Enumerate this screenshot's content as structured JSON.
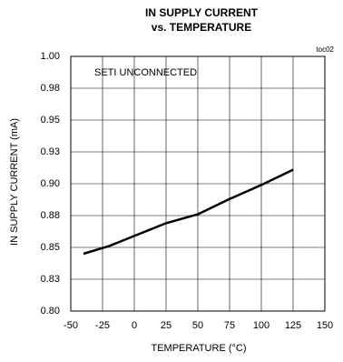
{
  "chart_data": {
    "type": "line",
    "title": "IN SUPPLY CURRENT",
    "subtitle": "vs. TEMPERATURE",
    "corner_label": "toc02",
    "annotation": "SETI UNCONNECTED",
    "x_label": "TEMPERATURE (°C)",
    "y_label": "IN SUPPLY CURRENT (mA)",
    "x": [
      -40,
      -20,
      0,
      25,
      50,
      75,
      100,
      125
    ],
    "values": [
      0.845,
      0.851,
      0.859,
      0.869,
      0.876,
      0.888,
      0.899,
      0.911
    ],
    "color": "#000000",
    "xlim": [
      -50,
      150
    ],
    "xticks": [
      -50,
      -25,
      0,
      25,
      50,
      75,
      100,
      125,
      150
    ],
    "ylim": [
      0.8,
      1.0
    ],
    "yticks": [
      {
        "value": 0.8,
        "label": "0.80"
      },
      {
        "value": 0.825,
        "label": "0.83"
      },
      {
        "value": 0.85,
        "label": "0.85"
      },
      {
        "value": 0.875,
        "label": "0.88"
      },
      {
        "value": 0.9,
        "label": "0.90"
      },
      {
        "value": 0.925,
        "label": "0.93"
      },
      {
        "value": 0.95,
        "label": "0.95"
      },
      {
        "value": 0.975,
        "label": "0.98"
      },
      {
        "value": 1.0,
        "label": "1.00"
      }
    ],
    "grid": true
  }
}
